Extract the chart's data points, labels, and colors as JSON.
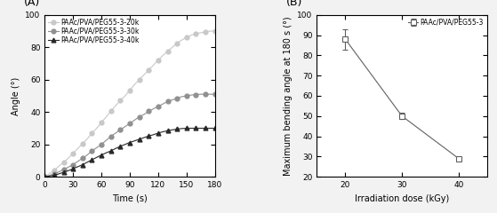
{
  "panel_A": {
    "xlabel": "Time (s)",
    "ylabel": "Angle (°)",
    "xlim": [
      0,
      180
    ],
    "ylim": [
      0,
      100
    ],
    "xticks": [
      0,
      30,
      60,
      90,
      120,
      150,
      180
    ],
    "yticks": [
      0,
      20,
      40,
      60,
      80,
      100
    ],
    "bg_color": "#ffffff",
    "series": [
      {
        "label": "PAAc/PVA/PEG55-3-20k",
        "color": "#c8c8c8",
        "marker": "o",
        "markersize": 3.5,
        "x": [
          0,
          5,
          10,
          15,
          20,
          25,
          30,
          35,
          40,
          45,
          50,
          55,
          60,
          65,
          70,
          75,
          80,
          85,
          90,
          95,
          100,
          105,
          110,
          115,
          120,
          125,
          130,
          135,
          140,
          145,
          150,
          155,
          160,
          165,
          170,
          175,
          180
        ],
        "y": [
          0,
          2.0,
          4.0,
          6.5,
          9.0,
          11.5,
          14.5,
          17.5,
          20.5,
          23.5,
          27.0,
          30.0,
          33.5,
          37.0,
          40.5,
          44.0,
          47.0,
          50.0,
          53.5,
          57.0,
          60.0,
          63.0,
          66.0,
          69.0,
          72.0,
          75.0,
          77.5,
          80.0,
          82.5,
          84.5,
          86.0,
          87.5,
          88.5,
          89.0,
          89.5,
          90.0,
          90.0
        ]
      },
      {
        "label": "PAAc/PVA/PEG55-3-30k",
        "color": "#909090",
        "marker": "o",
        "markersize": 3.5,
        "x": [
          0,
          5,
          10,
          15,
          20,
          25,
          30,
          35,
          40,
          45,
          50,
          55,
          60,
          65,
          70,
          75,
          80,
          85,
          90,
          95,
          100,
          105,
          110,
          115,
          120,
          125,
          130,
          135,
          140,
          145,
          150,
          155,
          160,
          165,
          170,
          175,
          180
        ],
        "y": [
          0,
          0.8,
          1.8,
          3.0,
          4.5,
          6.0,
          7.5,
          9.5,
          11.5,
          13.5,
          16.0,
          18.0,
          20.0,
          22.5,
          25.0,
          27.0,
          29.0,
          31.0,
          33.0,
          35.0,
          37.0,
          38.5,
          40.5,
          42.0,
          43.5,
          45.0,
          46.5,
          47.5,
          48.5,
          49.5,
          50.0,
          50.5,
          50.8,
          51.0,
          51.0,
          51.0,
          51.0
        ]
      },
      {
        "label": "PAAc/PVA/PEG55-3-40k",
        "color": "#282828",
        "marker": "^",
        "markersize": 3.5,
        "x": [
          0,
          5,
          10,
          15,
          20,
          25,
          30,
          35,
          40,
          45,
          50,
          55,
          60,
          65,
          70,
          75,
          80,
          85,
          90,
          95,
          100,
          105,
          110,
          115,
          120,
          125,
          130,
          135,
          140,
          145,
          150,
          155,
          160,
          165,
          170,
          175,
          180
        ],
        "y": [
          0,
          0.5,
          1.0,
          1.8,
          2.8,
          3.8,
          5.0,
          6.2,
          7.5,
          9.0,
          10.5,
          12.0,
          13.5,
          14.8,
          16.0,
          17.5,
          18.8,
          20.0,
          21.2,
          22.2,
          23.2,
          24.2,
          25.2,
          26.0,
          27.0,
          27.8,
          28.5,
          29.0,
          29.5,
          29.8,
          30.0,
          30.0,
          30.0,
          30.0,
          30.0,
          30.0,
          30.0
        ]
      }
    ]
  },
  "panel_B": {
    "xlabel": "Irradiation dose (kGy)",
    "ylabel": "Maximum bending angle at 180 s (°)",
    "xlim": [
      15,
      45
    ],
    "ylim": [
      20,
      100
    ],
    "xticks": [
      20,
      30,
      40
    ],
    "yticks": [
      20,
      30,
      40,
      50,
      60,
      70,
      80,
      90,
      100
    ],
    "bg_color": "#ffffff",
    "series": [
      {
        "label": "PAAc/PVA/PEG55-3",
        "color": "#606060",
        "marker": "s",
        "markersize": 4.5,
        "x": [
          20,
          30,
          40
        ],
        "y": [
          88,
          50,
          29
        ],
        "yerr": [
          5,
          1.5,
          0.8
        ]
      }
    ]
  },
  "fig_bg": "#f2f2f2",
  "label_fontsize": 9,
  "tick_fontsize": 6.5,
  "axis_label_fontsize": 7
}
